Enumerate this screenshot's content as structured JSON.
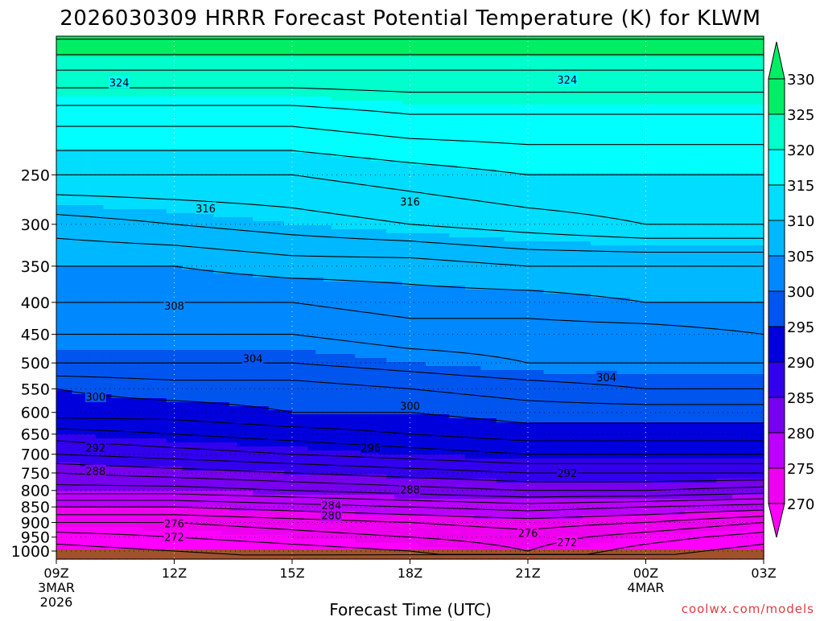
{
  "chart_data": {
    "type": "heatmap",
    "title": "2026030309 HRRR Forecast Potential Temperature (K) for KLWM",
    "xlabel": "Forecast Time (UTC)",
    "ylabel": "",
    "credit": "coolwx.com/models",
    "y_axis": {
      "scale": "log-pressure",
      "range_hPa": [
        1030,
        150
      ],
      "ticks": [
        250,
        300,
        350,
        400,
        450,
        500,
        550,
        600,
        650,
        700,
        750,
        800,
        850,
        900,
        950,
        1000
      ]
    },
    "x_axis": {
      "range_hours": [
        0,
        18
      ],
      "ticks": [
        {
          "hour": 0,
          "label": "09Z",
          "sub1": "3MAR",
          "sub2": "2026"
        },
        {
          "hour": 3,
          "label": "12Z",
          "sub1": "",
          "sub2": ""
        },
        {
          "hour": 6,
          "label": "15Z",
          "sub1": "",
          "sub2": ""
        },
        {
          "hour": 9,
          "label": "18Z",
          "sub1": "",
          "sub2": ""
        },
        {
          "hour": 12,
          "label": "21Z",
          "sub1": "",
          "sub2": ""
        },
        {
          "hour": 15,
          "label": "00Z",
          "sub1": "4MAR",
          "sub2": ""
        },
        {
          "hour": 18,
          "label": "03Z",
          "sub1": "",
          "sub2": ""
        }
      ]
    },
    "colorbar": {
      "labels": [
        "330",
        "325",
        "320",
        "315",
        "310",
        "305",
        "300",
        "295",
        "290",
        "285",
        "280",
        "275",
        "270"
      ],
      "band_colors": [
        "#00ee66",
        "#00ffcc",
        "#00ffff",
        "#00ddff",
        "#00b8ff",
        "#0088ff",
        "#0055ee",
        "#0000dd",
        "#3300ee",
        "#7700ee",
        "#bb00ff",
        "#ee00ee",
        "#ff00ff"
      ]
    },
    "levels": [
      270,
      275,
      280,
      285,
      290,
      295,
      300,
      305,
      310,
      315,
      320,
      325,
      330
    ],
    "colors": [
      "#ff00ff",
      "#ee00ee",
      "#bb00ff",
      "#7700ee",
      "#3300ee",
      "#0000dd",
      "#0055ee",
      "#0088ff",
      "#00b8ff",
      "#00ddff",
      "#00ffff",
      "#00ffcc",
      "#00ee66"
    ],
    "ground_color": "#a0522d",
    "contour_interval_K": 2,
    "isentrope_profile": {
      "times_hours": [
        0,
        3,
        6,
        9,
        12,
        15,
        18
      ],
      "levels_hPa": [
        1000,
        950,
        900,
        850,
        800,
        750,
        700,
        650,
        600,
        550,
        500,
        450,
        400,
        350,
        300,
        250,
        200,
        170
      ],
      "theta_K": [
        [
          271,
          272,
          273,
          274,
          276,
          273,
          271
        ],
        [
          273,
          274,
          275,
          276,
          277,
          275,
          273
        ],
        [
          276,
          276,
          277,
          278,
          279,
          278,
          276
        ],
        [
          280,
          280,
          281,
          282,
          283,
          282,
          281
        ],
        [
          285,
          285,
          286,
          287,
          288,
          288,
          287
        ],
        [
          288,
          289,
          290,
          291,
          292,
          292,
          292
        ],
        [
          292,
          293,
          294,
          295,
          296,
          296,
          296
        ],
        [
          295,
          296,
          297,
          298,
          299,
          299,
          299
        ],
        [
          299,
          299,
          300,
          300,
          301,
          301,
          301
        ],
        [
          300,
          301,
          301,
          302,
          303,
          304,
          304
        ],
        [
          304,
          304,
          304,
          305,
          306,
          306,
          306
        ],
        [
          306,
          306,
          306,
          307,
          307,
          307,
          308
        ],
        [
          308,
          308,
          308,
          309,
          309,
          310,
          310
        ],
        [
          310,
          310,
          311,
          311,
          312,
          312,
          312
        ],
        [
          313,
          314,
          315,
          316,
          317,
          318,
          318
        ],
        [
          318,
          318,
          318,
          319,
          320,
          320,
          320
        ],
        [
          323,
          323,
          323,
          324,
          324,
          324,
          324
        ],
        [
          328,
          328,
          328,
          328,
          328,
          328,
          328
        ]
      ]
    },
    "contour_labels": [
      {
        "text": "324",
        "hour": 1.6,
        "hPa": 178
      },
      {
        "text": "324",
        "hour": 13.0,
        "hPa": 176
      },
      {
        "text": "316",
        "hour": 3.8,
        "hPa": 283
      },
      {
        "text": "316",
        "hour": 9.0,
        "hPa": 276
      },
      {
        "text": "308",
        "hour": 3.0,
        "hPa": 405
      },
      {
        "text": "304",
        "hour": 5.0,
        "hPa": 492
      },
      {
        "text": "304",
        "hour": 14.0,
        "hPa": 527
      },
      {
        "text": "300",
        "hour": 1.0,
        "hPa": 566
      },
      {
        "text": "300",
        "hour": 9.0,
        "hPa": 586
      },
      {
        "text": "296",
        "hour": 8.0,
        "hPa": 683
      },
      {
        "text": "292",
        "hour": 1.0,
        "hPa": 683
      },
      {
        "text": "292",
        "hour": 13.0,
        "hPa": 750
      },
      {
        "text": "288",
        "hour": 1.0,
        "hPa": 745
      },
      {
        "text": "288",
        "hour": 9.0,
        "hPa": 797
      },
      {
        "text": "284",
        "hour": 7.0,
        "hPa": 845
      },
      {
        "text": "280",
        "hour": 7.0,
        "hPa": 877
      },
      {
        "text": "276",
        "hour": 3.0,
        "hPa": 903
      },
      {
        "text": "276",
        "hour": 12.0,
        "hPa": 935
      },
      {
        "text": "272",
        "hour": 3.0,
        "hPa": 950
      },
      {
        "text": "272",
        "hour": 13.0,
        "hPa": 968
      }
    ]
  }
}
